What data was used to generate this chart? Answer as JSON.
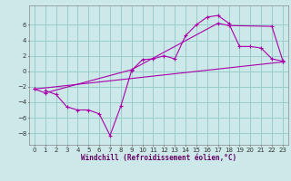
{
  "xlabel": "Windchill (Refroidissement éolien,°C)",
  "background_color": "#cce8e8",
  "grid_color": "#99cccc",
  "line_color": "#aa00aa",
  "xlim": [
    -0.5,
    23.5
  ],
  "ylim": [
    -9.5,
    8.5
  ],
  "xticks": [
    0,
    1,
    2,
    3,
    4,
    5,
    6,
    7,
    8,
    9,
    10,
    11,
    12,
    13,
    14,
    15,
    16,
    17,
    18,
    19,
    20,
    21,
    22,
    23
  ],
  "yticks": [
    -8,
    -6,
    -4,
    -2,
    0,
    2,
    4,
    6
  ],
  "line1_x": [
    1,
    2,
    3,
    4,
    5,
    6,
    7,
    8,
    9,
    10,
    11,
    12,
    13,
    14,
    15,
    16,
    17,
    18,
    19,
    20,
    21,
    22,
    23
  ],
  "line1_y": [
    -2.5,
    -3.0,
    -4.6,
    -5.0,
    -5.0,
    -5.5,
    -8.3,
    -4.5,
    0.1,
    1.5,
    1.6,
    2.0,
    1.6,
    4.6,
    6.0,
    7.0,
    7.2,
    6.2,
    3.2,
    3.2,
    3.0,
    1.6,
    1.3
  ],
  "line2_x": [
    0,
    1,
    9,
    17,
    18,
    22,
    23
  ],
  "line2_y": [
    -2.3,
    -2.8,
    0.2,
    6.2,
    5.9,
    5.8,
    1.4
  ],
  "line3_x": [
    0,
    23
  ],
  "line3_y": [
    -2.3,
    1.2
  ]
}
